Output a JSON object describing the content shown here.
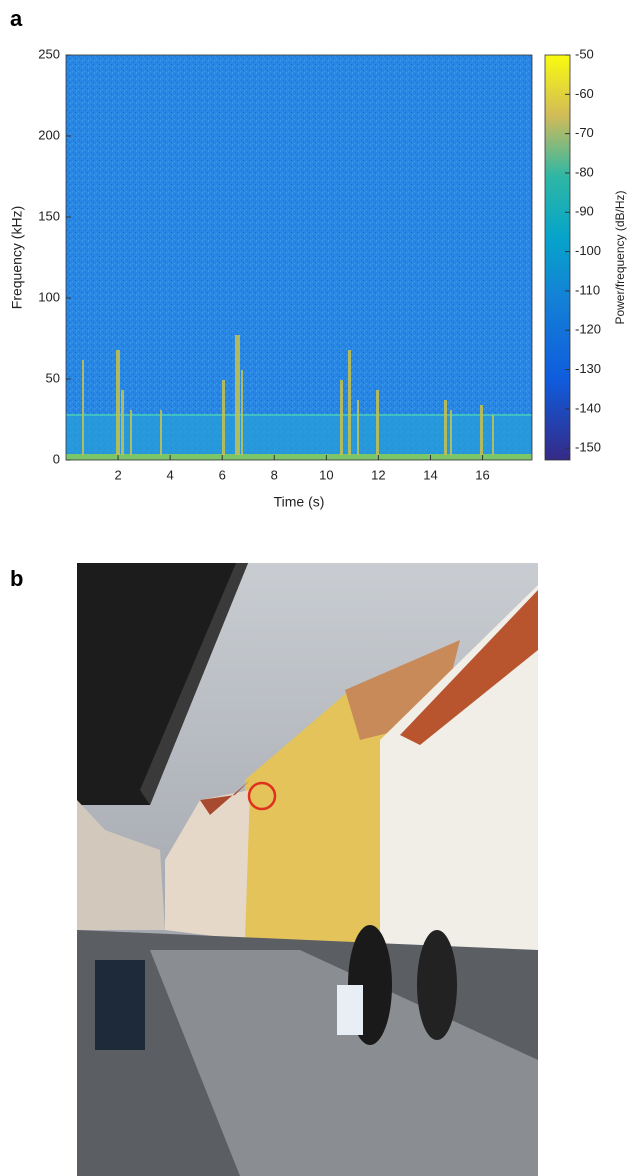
{
  "panels": [
    {
      "label": "a"
    },
    {
      "label": "b"
    }
  ],
  "chart_data": {
    "type": "spectrogram",
    "xlabel": "Time (s)",
    "ylabel": "Frequency (kHz)",
    "xlim": [
      0,
      17.9
    ],
    "xticks": [
      2,
      4,
      6,
      8,
      10,
      12,
      14,
      16
    ],
    "ylim": [
      0,
      250
    ],
    "yticks": [
      0,
      50,
      100,
      150,
      200,
      250
    ],
    "colorbar": {
      "label": "Power/frequency (dB/Hz)",
      "lim": [
        -153,
        -50
      ],
      "ticks": [
        -50,
        -60,
        -70,
        -80,
        -90,
        -100,
        -110,
        -120,
        -130,
        -140,
        -150
      ]
    }
  }
}
